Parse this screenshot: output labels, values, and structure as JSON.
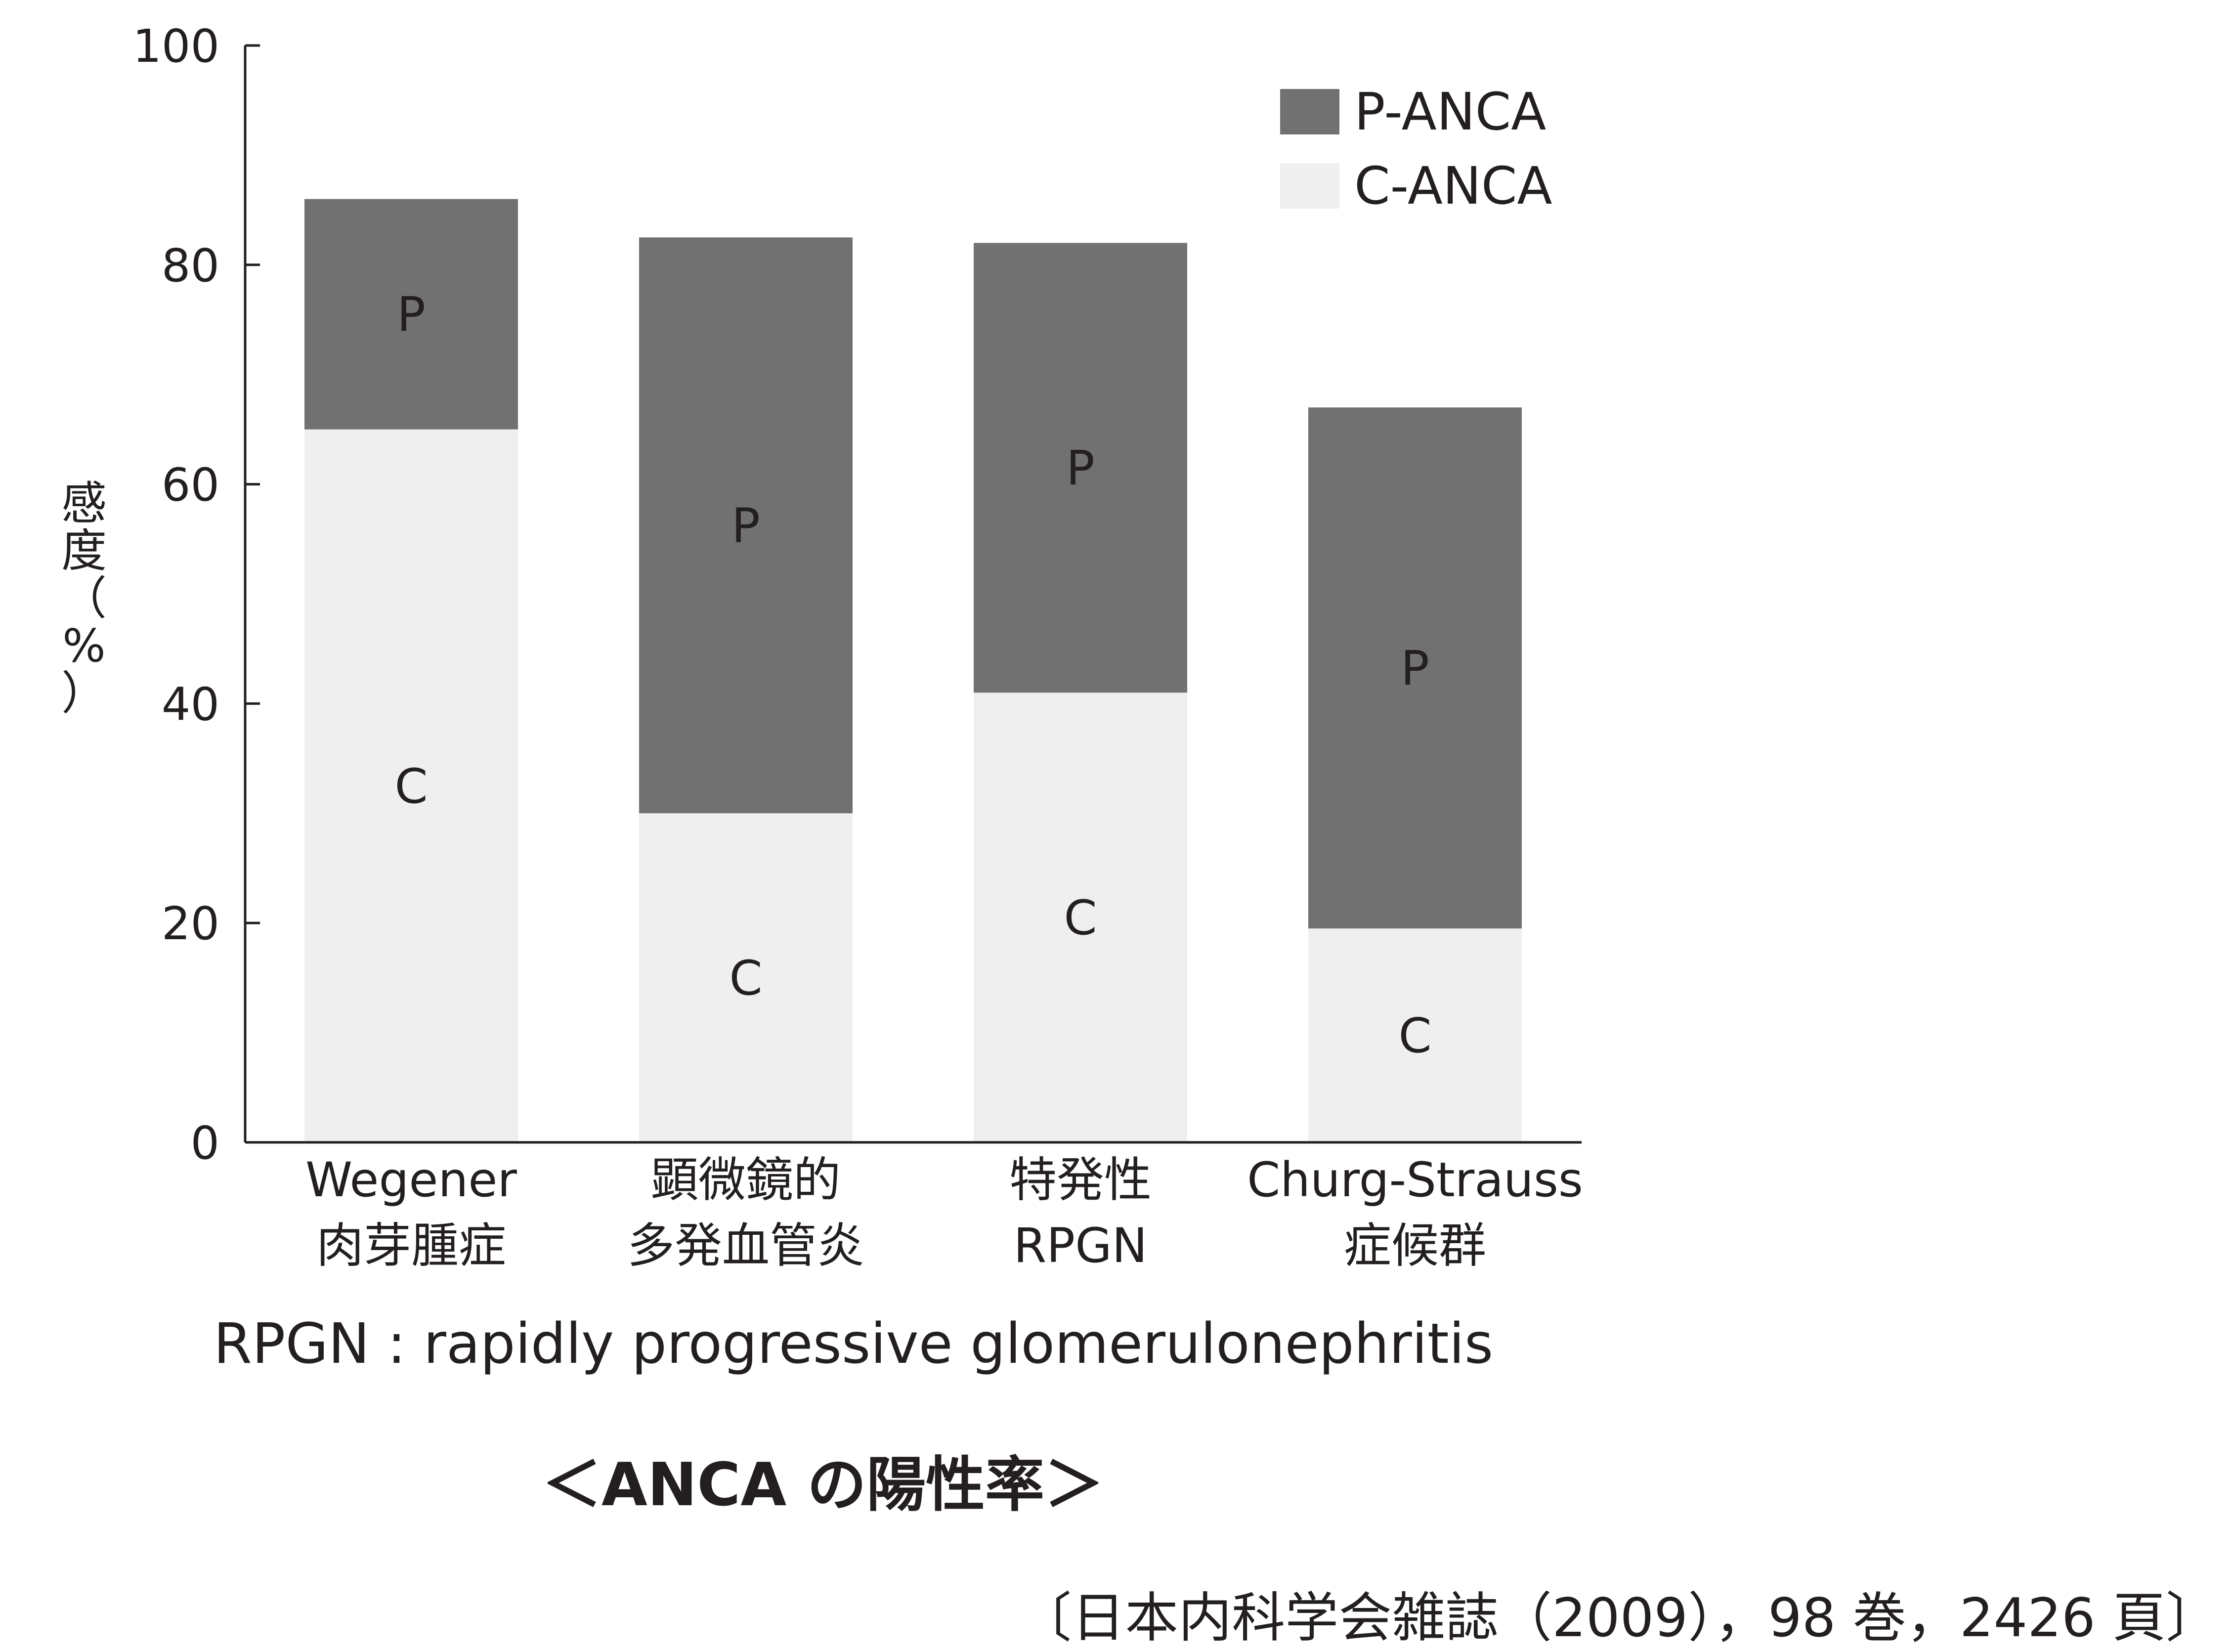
{
  "chart_data": {
    "type": "bar",
    "stacked": true,
    "categories": [
      [
        "Wegener",
        "肉芽腫症"
      ],
      [
        "顕微鏡的",
        "多発血管炎"
      ],
      [
        "特発性",
        "RPGN"
      ],
      [
        "Churg-Strauss",
        "症候群"
      ]
    ],
    "series": [
      {
        "name": "C-ANCA",
        "short": "C",
        "values": [
          65,
          30,
          41,
          19.5
        ],
        "color": "#efefef"
      },
      {
        "name": "P-ANCA",
        "short": "P",
        "values": [
          21,
          52.5,
          41,
          47.5
        ],
        "color": "#727171"
      }
    ],
    "legend_order": [
      1,
      0
    ],
    "ylabel": [
      "感",
      "度",
      "（",
      "%",
      "）"
    ],
    "ylim": [
      0,
      100
    ],
    "yticks": [
      0,
      20,
      40,
      60,
      80,
      100
    ],
    "grid": false,
    "legend_position": "top-right"
  },
  "note": "RPGN : rapidly progressive glomerulonephritis",
  "title": "＜ANCA の陽性率＞",
  "source": "〔日本内科学会雑誌（2009），98 巻，2426 頁〕"
}
